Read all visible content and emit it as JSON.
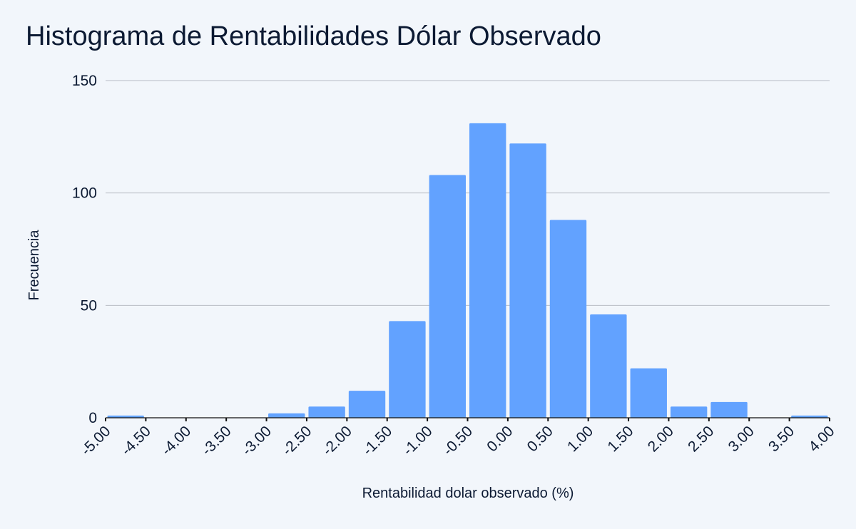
{
  "chart_data": {
    "type": "bar",
    "title": "Histograma de Rentabilidades Dólar Observado",
    "xlabel": "Rentabilidad dolar observado (%)",
    "ylabel": "Frecuencia",
    "bin_edges": [
      -5.0,
      -4.5,
      -4.0,
      -3.5,
      -3.0,
      -2.5,
      -2.0,
      -1.5,
      -1.0,
      -0.5,
      0.0,
      0.5,
      1.0,
      1.5,
      2.0,
      2.5,
      3.0,
      3.5,
      4.0
    ],
    "x_tick_labels": [
      "-5.00",
      "-4.50",
      "-4.00",
      "-3.50",
      "-3.00",
      "-2.50",
      "-2.00",
      "-1.50",
      "-1.00",
      "-0.50",
      "0.00",
      "0.50",
      "1.00",
      "1.50",
      "2.00",
      "2.50",
      "3.00",
      "3.50",
      "4.00"
    ],
    "values": [
      1,
      0,
      0,
      0,
      2,
      5,
      12,
      43,
      108,
      131,
      122,
      88,
      46,
      22,
      5,
      7,
      0,
      1
    ],
    "y_ticks": [
      "0",
      "50",
      "100",
      "150"
    ],
    "ylim": [
      0,
      150
    ],
    "xlim": [
      -5.0,
      4.0
    ],
    "bar_color": "#62a2ff",
    "grid": true,
    "legend": "none"
  }
}
